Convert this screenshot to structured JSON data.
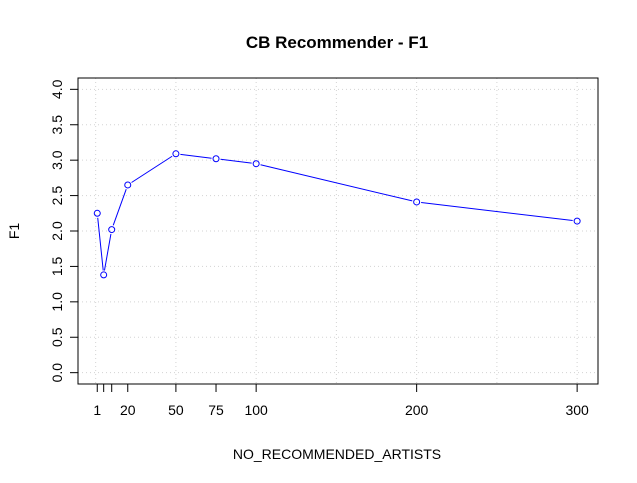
{
  "chart_data": {
    "type": "line",
    "title": "CB Recommender - F1",
    "xlabel": "NO_RECOMMENDED_ARTISTS",
    "ylabel": "F1",
    "x": [
      1,
      5,
      10,
      20,
      50,
      75,
      100,
      200,
      300
    ],
    "series": [
      {
        "values": [
          2.25,
          1.38,
          2.02,
          2.65,
          3.09,
          3.02,
          2.95,
          2.41,
          2.14
        ]
      }
    ],
    "xlim": [
      -11.0,
      313.0
    ],
    "ylim": [
      -0.16,
      4.16
    ],
    "x_ticks": [
      1,
      10,
      20,
      50,
      75,
      100,
      200,
      300
    ],
    "x_tick_labels": [
      "1",
      "",
      "20",
      "50",
      "75",
      "100",
      "200",
      "300"
    ],
    "x_minor_ticks": [
      5
    ],
    "y_ticks": [
      0.0,
      0.5,
      1.0,
      1.5,
      2.0,
      2.5,
      3.0,
      3.5,
      4.0
    ],
    "y_tick_labels": [
      "0.0",
      "0.5",
      "1.0",
      "1.5",
      "2.0",
      "2.5",
      "3.0",
      "3.5",
      "4.0"
    ],
    "grid_x": [
      0,
      50,
      100,
      150,
      200,
      250,
      300
    ],
    "grid_y": [
      0.0,
      0.5,
      1.0,
      1.5,
      2.0,
      2.5,
      3.0,
      3.5,
      4.0
    ],
    "grid": true,
    "line_color": "#0000ff",
    "marker": "open-circle"
  }
}
